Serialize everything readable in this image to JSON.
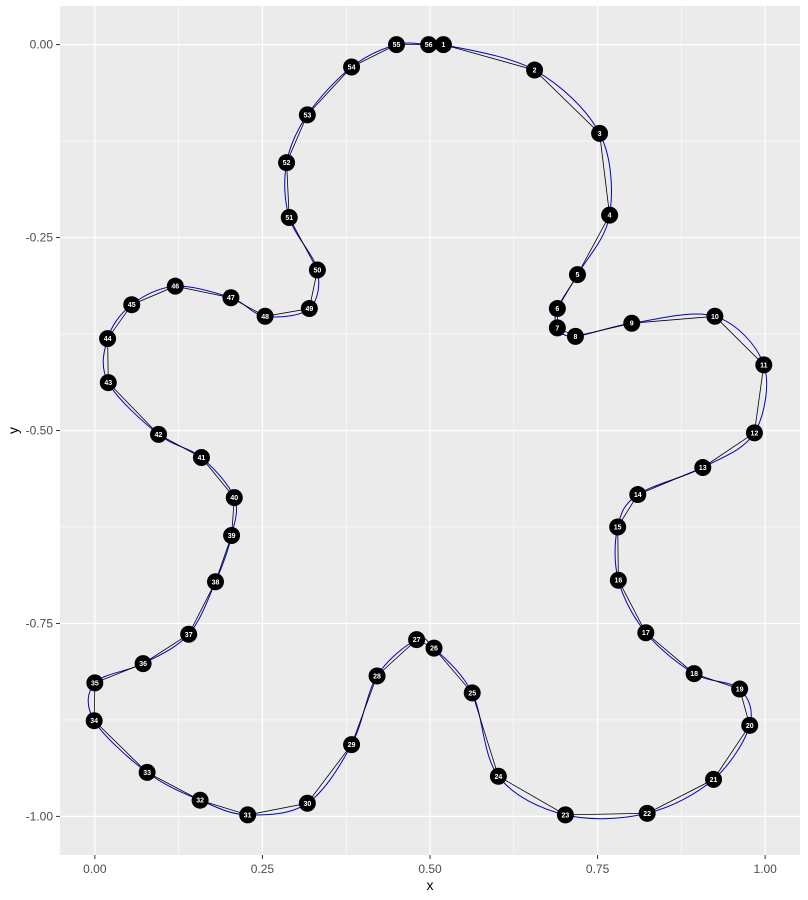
{
  "chart_data": {
    "type": "scatter",
    "title": "",
    "xlabel": "x",
    "ylabel": "y",
    "xlim": [
      -0.052,
      1.052
    ],
    "ylim": [
      -1.05,
      0.05
    ],
    "x_ticks": [
      0,
      0.25,
      0.5,
      0.75,
      1
    ],
    "x_tick_labels": [
      "0.00",
      "0.25",
      "0.50",
      "0.75",
      "1.00"
    ],
    "y_ticks": [
      0,
      -0.25,
      -0.5,
      -0.75,
      -1
    ],
    "y_tick_labels": [
      "0.00",
      "-0.25",
      "-0.50",
      "-0.75",
      "-1.00"
    ],
    "panel_background": "#ebebeb",
    "grid_color": "#ffffff",
    "polygon_color": "#000000",
    "smooth_curve_color": "#0000cc",
    "point_color": "#000000",
    "point_label_color": "#ffffff",
    "points": [
      {
        "id": "1",
        "x": 0.52,
        "y": 0.0
      },
      {
        "id": "2",
        "x": 0.656,
        "y": -0.033
      },
      {
        "id": "3",
        "x": 0.753,
        "y": -0.115
      },
      {
        "id": "4",
        "x": 0.768,
        "y": -0.221
      },
      {
        "id": "5",
        "x": 0.72,
        "y": -0.298
      },
      {
        "id": "6",
        "x": 0.69,
        "y": -0.342
      },
      {
        "id": "7",
        "x": 0.69,
        "y": -0.367
      },
      {
        "id": "8",
        "x": 0.717,
        "y": -0.378
      },
      {
        "id": "9",
        "x": 0.801,
        "y": -0.361
      },
      {
        "id": "10",
        "x": 0.925,
        "y": -0.352
      },
      {
        "id": "11",
        "x": 0.998,
        "y": -0.415
      },
      {
        "id": "12",
        "x": 0.984,
        "y": -0.503
      },
      {
        "id": "13",
        "x": 0.907,
        "y": -0.548
      },
      {
        "id": "14",
        "x": 0.81,
        "y": -0.583
      },
      {
        "id": "15",
        "x": 0.78,
        "y": -0.625
      },
      {
        "id": "16",
        "x": 0.781,
        "y": -0.694
      },
      {
        "id": "17",
        "x": 0.822,
        "y": -0.762
      },
      {
        "id": "18",
        "x": 0.894,
        "y": -0.815
      },
      {
        "id": "19",
        "x": 0.962,
        "y": -0.835
      },
      {
        "id": "20",
        "x": 0.977,
        "y": -0.882
      },
      {
        "id": "21",
        "x": 0.923,
        "y": -0.952
      },
      {
        "id": "22",
        "x": 0.824,
        "y": -0.996
      },
      {
        "id": "23",
        "x": 0.702,
        "y": -0.998
      },
      {
        "id": "24",
        "x": 0.602,
        "y": -0.948
      },
      {
        "id": "25",
        "x": 0.563,
        "y": -0.84
      },
      {
        "id": "26",
        "x": 0.506,
        "y": -0.782
      },
      {
        "id": "27",
        "x": 0.48,
        "y": -0.771
      },
      {
        "id": "28",
        "x": 0.421,
        "y": -0.818
      },
      {
        "id": "29",
        "x": 0.383,
        "y": -0.907
      },
      {
        "id": "30",
        "x": 0.317,
        "y": -0.983
      },
      {
        "id": "31",
        "x": 0.228,
        "y": -0.998
      },
      {
        "id": "32",
        "x": 0.157,
        "y": -0.979
      },
      {
        "id": "33",
        "x": 0.078,
        "y": -0.943
      },
      {
        "id": "34",
        "x": -0.001,
        "y": -0.876
      },
      {
        "id": "35",
        "x": 0.0,
        "y": -0.827
      },
      {
        "id": "36",
        "x": 0.072,
        "y": -0.802
      },
      {
        "id": "37",
        "x": 0.14,
        "y": -0.764
      },
      {
        "id": "38",
        "x": 0.18,
        "y": -0.696
      },
      {
        "id": "39",
        "x": 0.204,
        "y": -0.636
      },
      {
        "id": "40",
        "x": 0.208,
        "y": -0.587
      },
      {
        "id": "41",
        "x": 0.159,
        "y": -0.535
      },
      {
        "id": "42",
        "x": 0.095,
        "y": -0.505
      },
      {
        "id": "43",
        "x": 0.02,
        "y": -0.438
      },
      {
        "id": "44",
        "x": 0.019,
        "y": -0.381
      },
      {
        "id": "45",
        "x": 0.055,
        "y": -0.337
      },
      {
        "id": "46",
        "x": 0.12,
        "y": -0.313
      },
      {
        "id": "47",
        "x": 0.203,
        "y": -0.328
      },
      {
        "id": "48",
        "x": 0.254,
        "y": -0.352
      },
      {
        "id": "49",
        "x": 0.32,
        "y": -0.342
      },
      {
        "id": "50",
        "x": 0.332,
        "y": -0.292
      },
      {
        "id": "51",
        "x": 0.29,
        "y": -0.224
      },
      {
        "id": "52",
        "x": 0.286,
        "y": -0.153
      },
      {
        "id": "53",
        "x": 0.317,
        "y": -0.091
      },
      {
        "id": "54",
        "x": 0.383,
        "y": -0.029
      },
      {
        "id": "55",
        "x": 0.45,
        "y": 0.0
      },
      {
        "id": "56",
        "x": 0.498,
        "y": 0.0
      }
    ]
  }
}
